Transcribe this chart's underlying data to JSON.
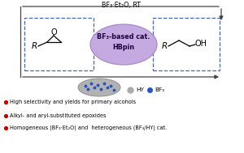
{
  "bg_color": "#ffffff",
  "top_arrow_text": "BF₃·Et₂O, RT",
  "center_ellipse_text": "BF₃-based cat.\nHBpin",
  "center_ellipse_color": "#c4aae0",
  "center_ellipse_edge": "#a888cc",
  "bullet_color": "#cc0000",
  "bullet_points": [
    "High selectivity and yields for primary alcohols",
    "Alkyl- and aryl-substituted epoxides",
    "Homogeneous (BF₃·Et₂O) and  heterogeneous (BF₃/HY) cat."
  ],
  "legend_hy_color": "#aaaaaa",
  "legend_bf3_color": "#2255cc",
  "arrow_color": "#444444",
  "box_dash_color": "#4466bb",
  "blob_color": "#aaaaaa",
  "blob_edge": "#888888"
}
